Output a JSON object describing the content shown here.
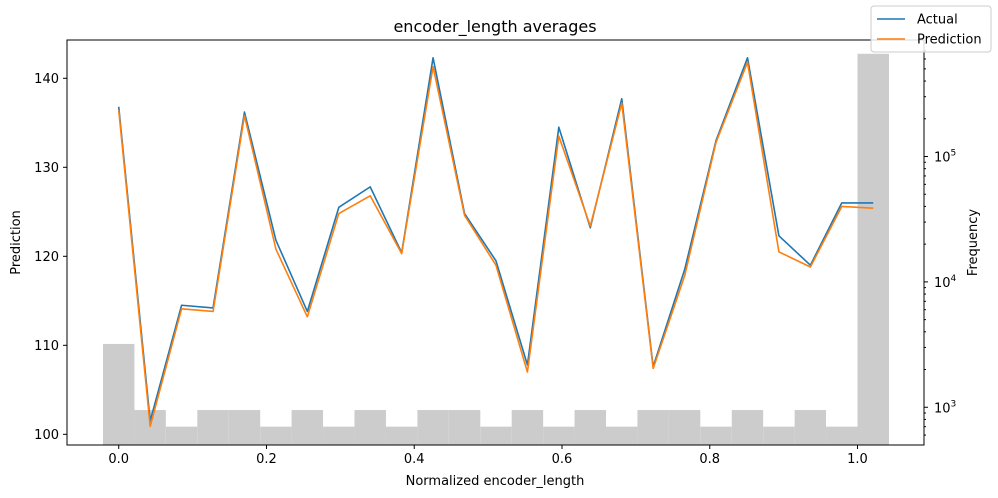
{
  "chart_data": {
    "type": "line",
    "title": "encoder_length averages",
    "xlabel": "Normalized encoder_length",
    "ylabel": "Prediction",
    "ylabel_right": "Frequency",
    "xlim": [
      -0.07,
      1.09
    ],
    "ylim": [
      98.8,
      144.3
    ],
    "x_ticks": [
      0.0,
      0.2,
      0.4,
      0.6,
      0.8,
      1.0
    ],
    "x_tick_labels": [
      "0.0",
      "0.2",
      "0.4",
      "0.6",
      "0.8",
      "1.0"
    ],
    "y_ticks": [
      100,
      110,
      120,
      130,
      140
    ],
    "y_tick_labels": [
      "100",
      "110",
      "120",
      "130",
      "140"
    ],
    "y2_log_range": [
      500,
      850000
    ],
    "y2_ticks": [
      1000,
      10000,
      100000
    ],
    "y2_tick_labels": [
      "10",
      "10",
      "10"
    ],
    "y2_tick_exponents": [
      "3",
      "4",
      "5"
    ],
    "x": [
      0.0,
      0.0426,
      0.0851,
      0.1277,
      0.1702,
      0.2128,
      0.2553,
      0.2979,
      0.3404,
      0.383,
      0.4255,
      0.4681,
      0.5106,
      0.5532,
      0.5957,
      0.6383,
      0.6809,
      0.7234,
      0.766,
      0.8085,
      0.8511,
      0.8936,
      0.9362,
      0.9787,
      1.0213
    ],
    "series": [
      {
        "name": "Actual",
        "color": "#1f77b4",
        "values": [
          136.8,
          101.5,
          114.5,
          114.2,
          136.2,
          121.8,
          113.8,
          125.5,
          127.8,
          120.4,
          142.3,
          124.8,
          119.5,
          107.8,
          134.5,
          123.2,
          137.7,
          107.6,
          118.5,
          133.0,
          142.3,
          122.3,
          119.0,
          126.0,
          126.0
        ]
      },
      {
        "name": "Prediction",
        "color": "#ff7f0e",
        "values": [
          136.4,
          100.9,
          114.1,
          113.8,
          135.8,
          120.8,
          113.2,
          124.8,
          126.8,
          120.3,
          141.3,
          124.6,
          119.0,
          107.0,
          133.5,
          123.4,
          137.2,
          107.4,
          117.8,
          132.8,
          141.8,
          120.5,
          118.8,
          125.6,
          125.4
        ]
      }
    ],
    "histogram": {
      "name": "Frequency",
      "color": "#cccccc",
      "bin_edges": [
        -0.0213,
        0.0213,
        0.0638,
        0.1064,
        0.1489,
        0.1915,
        0.234,
        0.2766,
        0.3191,
        0.3617,
        0.4043,
        0.4468,
        0.4894,
        0.5319,
        0.5745,
        0.617,
        0.6596,
        0.7021,
        0.7447,
        0.7872,
        0.8298,
        0.8723,
        0.9149,
        0.9574,
        1.0,
        1.0426
      ],
      "counts": [
        3200,
        950,
        700,
        950,
        950,
        700,
        950,
        700,
        950,
        700,
        950,
        950,
        700,
        950,
        700,
        950,
        700,
        950,
        950,
        700,
        950,
        700,
        950,
        700,
        660000
      ]
    },
    "legend": {
      "position": "top-right",
      "entries": [
        "Actual",
        "Prediction"
      ]
    }
  }
}
